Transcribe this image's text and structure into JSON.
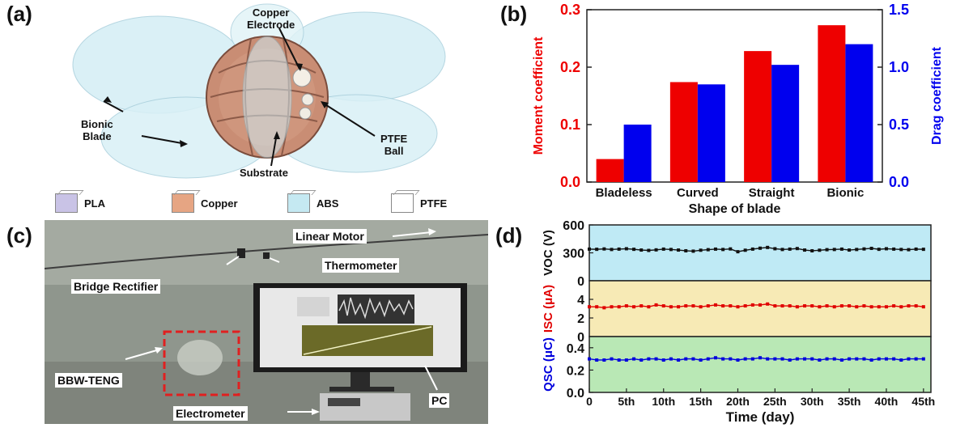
{
  "panels": {
    "a": {
      "label": "(a)",
      "callouts": {
        "copper_electrode": "Copper\nElectrode",
        "bionic_blade": "Bionic\nBlade",
        "ptfe_ball": "PTFE\nBall",
        "substrate": "Substrate"
      },
      "legend": [
        "PLA",
        "Copper",
        "ABS",
        "PTFE"
      ],
      "legend_colors": [
        "#c9c3e6",
        "#e6a583",
        "#c5e9f2",
        "#ffffff"
      ]
    },
    "b": {
      "label": "(b)"
    },
    "c": {
      "label": "(c)",
      "callouts": {
        "linear_motor": "Linear Motor",
        "thermometer": "Thermometer",
        "bridge_rectifier": "Bridge Rectifier",
        "bbw_teng": "BBW-TENG",
        "pc": "PC",
        "electrometer": "Electrometer"
      }
    },
    "d": {
      "label": "(d)"
    }
  },
  "chart_data": [
    {
      "type": "bar",
      "panel": "b",
      "categories": [
        "Bladeless",
        "Curved",
        "Straight",
        "Bionic"
      ],
      "xlabel": "Shape of blade",
      "series": [
        {
          "name": "Moment coefficient",
          "axis": "left",
          "color": "#ee0000",
          "values": [
            0.04,
            0.174,
            0.228,
            0.273
          ]
        },
        {
          "name": "Drag coefficient",
          "axis": "right",
          "color": "#0000ee",
          "values": [
            0.5,
            0.85,
            1.02,
            1.2
          ]
        }
      ],
      "ylabel_left": "Moment coefficient",
      "ylabel_right": "Drag coefficient",
      "ylim_left": [
        0,
        0.3
      ],
      "ylim_right": [
        0,
        1.5
      ],
      "yticks_left": [
        "0.0",
        "0.1",
        "0.2",
        "0.3"
      ],
      "yticks_right": [
        "0.0",
        "0.5",
        "1.0",
        "1.5"
      ]
    },
    {
      "type": "line",
      "panel": "d",
      "xlabel": "Time (day)",
      "xlim": [
        0,
        46
      ],
      "xticks": [
        "0",
        "5th",
        "10th",
        "15th",
        "20th",
        "25th",
        "30th",
        "35th",
        "40th",
        "45th"
      ],
      "subplots": [
        {
          "ylabel": "VOC (V)",
          "ylim": [
            0,
            600
          ],
          "yticks": [
            "0",
            "300",
            "600"
          ],
          "color": "#111111",
          "bg": "#bfeaf5",
          "values": [
            340,
            338,
            342,
            336,
            340,
            344,
            338,
            330,
            326,
            332,
            340,
            336,
            330,
            322,
            318,
            328,
            334,
            340,
            336,
            342,
            312,
            328,
            340,
            350,
            358,
            344,
            336,
            340,
            346,
            330,
            322,
            328,
            334,
            336,
            340,
            330,
            336,
            342,
            348,
            338,
            344,
            340,
            336,
            334,
            340,
            338
          ]
        },
        {
          "ylabel": "ISC (μA)",
          "ylim": [
            0,
            6
          ],
          "yticks": [
            "0",
            "2",
            "4"
          ],
          "color": "#e00000",
          "bg": "#f7eab5",
          "values": [
            3.2,
            3.2,
            3.1,
            3.2,
            3.2,
            3.3,
            3.2,
            3.3,
            3.2,
            3.4,
            3.3,
            3.2,
            3.2,
            3.3,
            3.3,
            3.2,
            3.3,
            3.4,
            3.3,
            3.3,
            3.2,
            3.3,
            3.4,
            3.4,
            3.5,
            3.3,
            3.3,
            3.3,
            3.2,
            3.3,
            3.3,
            3.2,
            3.3,
            3.2,
            3.3,
            3.3,
            3.2,
            3.3,
            3.2,
            3.2,
            3.2,
            3.3,
            3.2,
            3.3,
            3.3,
            3.2
          ]
        },
        {
          "ylabel": "QSC (μC)",
          "ylim": [
            0,
            0.5
          ],
          "yticks": [
            "0.0",
            "0.2",
            "0.4"
          ],
          "color": "#0000dd",
          "bg": "#b9e8b5",
          "values": [
            0.3,
            0.29,
            0.29,
            0.3,
            0.29,
            0.29,
            0.3,
            0.29,
            0.3,
            0.3,
            0.29,
            0.3,
            0.29,
            0.3,
            0.3,
            0.29,
            0.3,
            0.31,
            0.3,
            0.3,
            0.29,
            0.3,
            0.3,
            0.31,
            0.3,
            0.3,
            0.3,
            0.29,
            0.3,
            0.3,
            0.3,
            0.29,
            0.3,
            0.3,
            0.29,
            0.3,
            0.3,
            0.3,
            0.29,
            0.3,
            0.3,
            0.3,
            0.29,
            0.3,
            0.3,
            0.3
          ]
        }
      ]
    }
  ]
}
